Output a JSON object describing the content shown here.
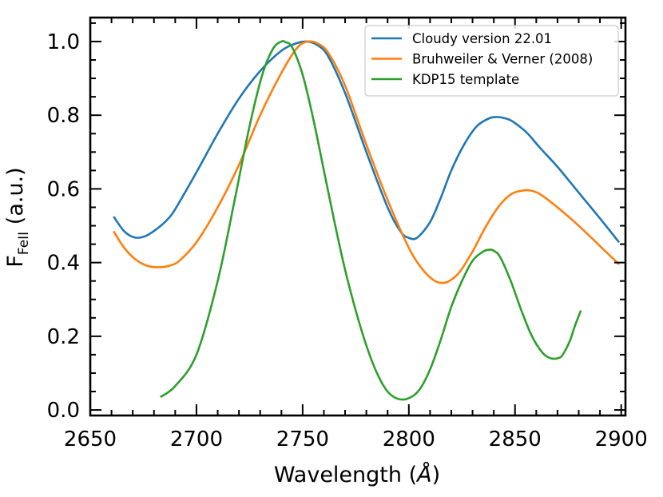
{
  "chart_data": {
    "type": "line",
    "xlabel": "Wavelength (Å)",
    "xlabel_prefix": "Wavelength (",
    "xlabel_unit": "Å",
    "xlabel_suffix": ")",
    "ylabel_main": "F",
    "ylabel_sub": "FeII",
    "ylabel_suffix": " (a.u.)",
    "xlim": [
      2650,
      2902
    ],
    "ylim": [
      -0.015,
      1.065
    ],
    "x_ticks": [
      2650,
      2700,
      2750,
      2800,
      2850,
      2900
    ],
    "y_ticks": [
      0.0,
      0.2,
      0.4,
      0.6,
      0.8,
      1.0
    ],
    "x_tick_labels": [
      "2650",
      "2700",
      "2750",
      "2800",
      "2850",
      "2900"
    ],
    "y_tick_labels": [
      "0.0",
      "0.2",
      "0.4",
      "0.6",
      "0.8",
      "1.0"
    ],
    "legend_position": "top-right",
    "series": [
      {
        "name": "Cloudy version 22.01",
        "color": "#1f77b4",
        "x": [
          2661,
          2666,
          2671,
          2676,
          2681,
          2686,
          2690,
          2700,
          2710,
          2720,
          2730,
          2740,
          2747,
          2752,
          2757,
          2762,
          2770,
          2780,
          2790,
          2796,
          2800,
          2804,
          2810,
          2815,
          2820,
          2826,
          2832,
          2838,
          2842,
          2845,
          2848,
          2852,
          2856,
          2862,
          2870,
          2880,
          2890,
          2899
        ],
        "y": [
          0.525,
          0.485,
          0.468,
          0.472,
          0.49,
          0.515,
          0.545,
          0.645,
          0.75,
          0.845,
          0.92,
          0.975,
          0.995,
          1.0,
          0.99,
          0.96,
          0.86,
          0.7,
          0.55,
          0.485,
          0.467,
          0.468,
          0.51,
          0.575,
          0.65,
          0.72,
          0.77,
          0.792,
          0.795,
          0.792,
          0.786,
          0.77,
          0.75,
          0.71,
          0.66,
          0.59,
          0.52,
          0.455
        ]
      },
      {
        "name": "Bruhweiler & Verner (2008)",
        "color": "#ff7f0e",
        "x": [
          2661,
          2666,
          2671,
          2676,
          2680,
          2684,
          2688,
          2692,
          2700,
          2710,
          2720,
          2730,
          2740,
          2747,
          2751,
          2754,
          2757,
          2762,
          2770,
          2780,
          2790,
          2800,
          2806,
          2811,
          2815,
          2819,
          2824,
          2830,
          2836,
          2842,
          2848,
          2853,
          2857,
          2862,
          2870,
          2880,
          2890,
          2899
        ],
        "y": [
          0.485,
          0.44,
          0.41,
          0.393,
          0.388,
          0.388,
          0.393,
          0.405,
          0.455,
          0.55,
          0.665,
          0.8,
          0.915,
          0.98,
          0.998,
          1.0,
          0.995,
          0.97,
          0.88,
          0.72,
          0.57,
          0.44,
          0.385,
          0.355,
          0.345,
          0.35,
          0.375,
          0.43,
          0.495,
          0.55,
          0.585,
          0.595,
          0.596,
          0.585,
          0.55,
          0.5,
          0.445,
          0.395
        ]
      },
      {
        "name": "KDP15 template",
        "color": "#2ca02c",
        "x": [
          2683,
          2690,
          2700,
          2710,
          2718,
          2725,
          2731,
          2736,
          2740,
          2742,
          2745,
          2750,
          2755,
          2760,
          2765,
          2770,
          2775,
          2780,
          2785,
          2790,
          2795,
          2800,
          2805,
          2810,
          2815,
          2820,
          2825,
          2830,
          2835,
          2838,
          2840,
          2843,
          2848,
          2853,
          2858,
          2863,
          2867,
          2871,
          2873,
          2876,
          2878,
          2881
        ],
        "y": [
          0.035,
          0.065,
          0.15,
          0.35,
          0.57,
          0.77,
          0.91,
          0.98,
          1.0,
          0.998,
          0.985,
          0.91,
          0.79,
          0.65,
          0.51,
          0.38,
          0.27,
          0.175,
          0.1,
          0.05,
          0.03,
          0.032,
          0.055,
          0.11,
          0.19,
          0.28,
          0.35,
          0.405,
          0.43,
          0.435,
          0.432,
          0.415,
          0.35,
          0.27,
          0.2,
          0.155,
          0.14,
          0.142,
          0.155,
          0.19,
          0.225,
          0.27
        ]
      }
    ]
  }
}
